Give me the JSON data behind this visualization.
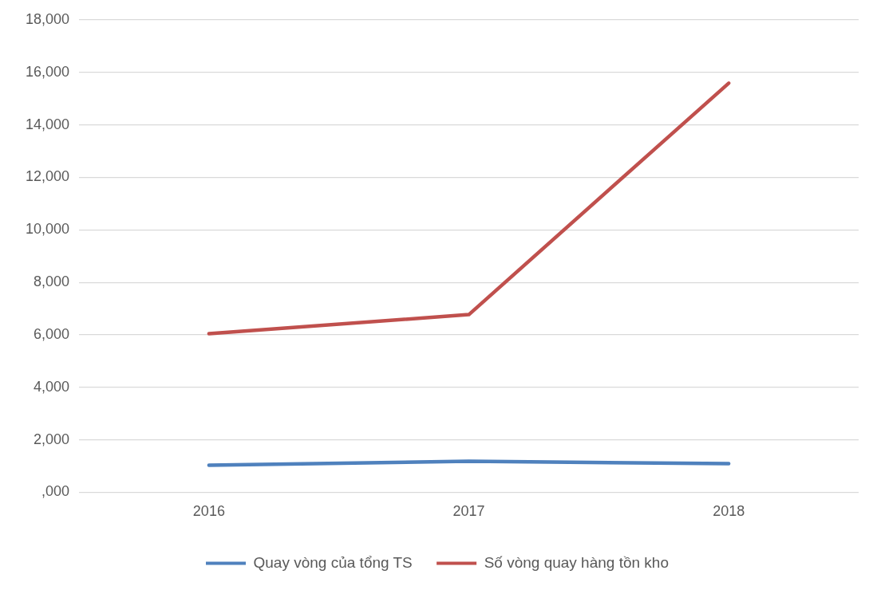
{
  "chart_data": {
    "type": "line",
    "categories": [
      "2016",
      "2017",
      "2018"
    ],
    "series": [
      {
        "name": "Quay vòng của tổng TS",
        "color": "#4f81bd",
        "values": [
          1030,
          1180,
          1090
        ]
      },
      {
        "name": "Số vòng quay hàng tồn kho",
        "color": "#c0504d",
        "values": [
          6040,
          6770,
          15590
        ]
      }
    ],
    "ylim": [
      0,
      18000
    ],
    "yticks": [
      {
        "value": 0,
        "label": ",000"
      },
      {
        "value": 2000,
        "label": "2,000"
      },
      {
        "value": 4000,
        "label": "4,000"
      },
      {
        "value": 6000,
        "label": "6,000"
      },
      {
        "value": 8000,
        "label": "8,000"
      },
      {
        "value": 10000,
        "label": "10,000"
      },
      {
        "value": 12000,
        "label": "12,000"
      },
      {
        "value": 14000,
        "label": "14,000"
      },
      {
        "value": 16000,
        "label": "16,000"
      },
      {
        "value": 18000,
        "label": "18,000"
      }
    ],
    "grid": "y",
    "legend": "bottom",
    "marker": "none",
    "line_style": "solid"
  }
}
